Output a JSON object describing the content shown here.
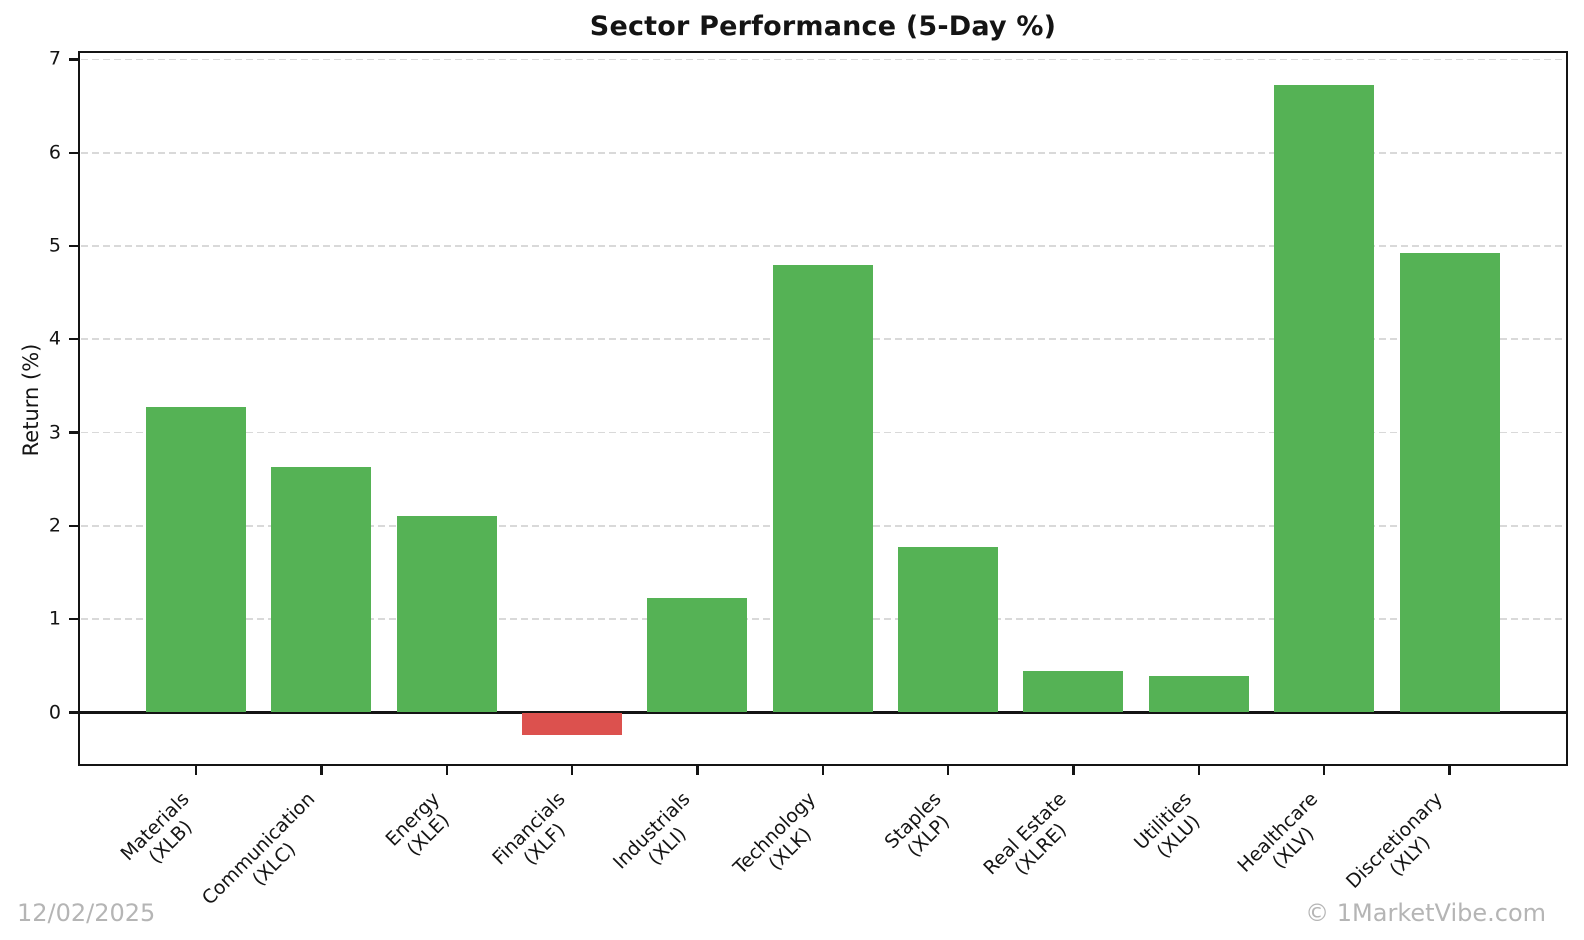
{
  "title": "Sector Performance (5-Day %)",
  "watermark": {
    "date": "12/02/2025",
    "copyright": "© 1MarketVibe.com"
  },
  "chart_data": {
    "type": "bar",
    "title": "Sector Performance (5-Day %)",
    "xlabel": "",
    "ylabel": "Return (%)",
    "ylim": [
      -0.6,
      7.1
    ],
    "yticks": [
      0,
      1,
      2,
      3,
      4,
      5,
      6,
      7
    ],
    "grid": "horizontal dashed lines at integer ticks",
    "legend": "none",
    "categories": [
      {
        "sector": "Materials",
        "ticker": "(XLB)"
      },
      {
        "sector": "Communication",
        "ticker": "(XLC)"
      },
      {
        "sector": "Energy",
        "ticker": "(XLE)"
      },
      {
        "sector": "Financials",
        "ticker": "(XLF)"
      },
      {
        "sector": "Industrials",
        "ticker": "(XLI)"
      },
      {
        "sector": "Technology",
        "ticker": "(XLK)"
      },
      {
        "sector": "Staples",
        "ticker": "(XLP)"
      },
      {
        "sector": "Real Estate",
        "ticker": "(XLRE)"
      },
      {
        "sector": "Utilities",
        "ticker": "(XLU)"
      },
      {
        "sector": "Healthcare",
        "ticker": "(XLV)"
      },
      {
        "sector": "Discretionary",
        "ticker": "(XLY)"
      }
    ],
    "values": [
      3.27,
      2.63,
      2.11,
      -0.24,
      1.23,
      4.8,
      1.77,
      0.44,
      0.39,
      6.73,
      4.92
    ],
    "colors": {
      "positive": "#55b255",
      "negative": "#dc514e",
      "axis": "#141414",
      "grid": "#d9d9d9",
      "watermark": "#b5b5b5"
    }
  }
}
